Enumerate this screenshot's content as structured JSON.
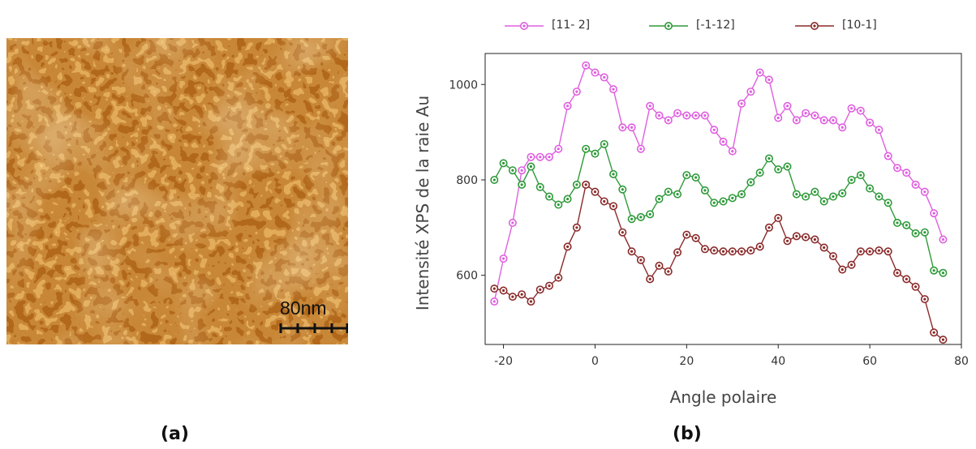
{
  "panel_a": {
    "scale_label": "80nm",
    "caption": "(a)",
    "colors": {
      "dark": "#8a4a10",
      "mid": "#c8791f",
      "light": "#f2c270",
      "highlight": "#fbe3a6"
    }
  },
  "panel_b": {
    "caption": "(b)"
  },
  "chart_data": {
    "type": "line",
    "title": "",
    "xlabel": "Angle polaire",
    "ylabel": "Intensité XPS de la raie Au",
    "xlim": [
      -24,
      80
    ],
    "ylim": [
      455,
      1065
    ],
    "xticks": [
      -20,
      0,
      20,
      40,
      60,
      80
    ],
    "yticks": [
      600,
      800,
      1000
    ],
    "grid": false,
    "legend_position": "top",
    "series": [
      {
        "name": "[11- 2]",
        "color": "#e05fe0",
        "x": [
          -22,
          -20,
          -18,
          -16,
          -14,
          -12,
          -10,
          -8,
          -6,
          -4,
          -2,
          0,
          2,
          4,
          6,
          8,
          10,
          12,
          14,
          16,
          18,
          20,
          22,
          24,
          26,
          28,
          30,
          32,
          34,
          36,
          38,
          40,
          42,
          44,
          46,
          48,
          50,
          52,
          54,
          56,
          58,
          60,
          62,
          64,
          66,
          68,
          70,
          72,
          74,
          76
        ],
        "y": [
          545,
          635,
          710,
          820,
          848,
          848,
          848,
          865,
          955,
          985,
          1040,
          1025,
          1015,
          990,
          910,
          910,
          865,
          955,
          935,
          925,
          940,
          935,
          935,
          935,
          905,
          880,
          860,
          960,
          985,
          1025,
          1010,
          930,
          955,
          925,
          940,
          935,
          925,
          925,
          910,
          950,
          945,
          920,
          905,
          850,
          825,
          815,
          790,
          775,
          730,
          675
        ]
      },
      {
        "name": "[-1-12]",
        "color": "#2f9a3a",
        "x": [
          -22,
          -20,
          -18,
          -16,
          -14,
          -12,
          -10,
          -8,
          -6,
          -4,
          -2,
          0,
          2,
          4,
          6,
          8,
          10,
          12,
          14,
          16,
          18,
          20,
          22,
          24,
          26,
          28,
          30,
          32,
          34,
          36,
          38,
          40,
          42,
          44,
          46,
          48,
          50,
          52,
          54,
          56,
          58,
          60,
          62,
          64,
          66,
          68,
          70,
          72,
          74,
          76
        ],
        "y": [
          800,
          835,
          820,
          790,
          828,
          785,
          765,
          748,
          760,
          790,
          865,
          855,
          875,
          812,
          780,
          718,
          722,
          728,
          760,
          775,
          770,
          810,
          805,
          778,
          752,
          755,
          762,
          770,
          795,
          815,
          845,
          822,
          828,
          770,
          765,
          775,
          755,
          765,
          772,
          800,
          810,
          782,
          765,
          752,
          710,
          705,
          688,
          690,
          610,
          605
        ]
      },
      {
        "name": "[10-1]",
        "color": "#8b2a2a",
        "x": [
          -22,
          -20,
          -18,
          -16,
          -14,
          -12,
          -10,
          -8,
          -6,
          -4,
          -2,
          0,
          2,
          4,
          6,
          8,
          10,
          12,
          14,
          16,
          18,
          20,
          22,
          24,
          26,
          28,
          30,
          32,
          34,
          36,
          38,
          40,
          42,
          44,
          46,
          48,
          50,
          52,
          54,
          56,
          58,
          60,
          62,
          64,
          66,
          68,
          70,
          72,
          74,
          76
        ],
        "y": [
          572,
          568,
          555,
          560,
          545,
          570,
          578,
          595,
          660,
          700,
          790,
          775,
          755,
          745,
          690,
          650,
          632,
          592,
          620,
          608,
          648,
          685,
          678,
          655,
          652,
          650,
          650,
          650,
          652,
          660,
          700,
          720,
          672,
          682,
          680,
          675,
          658,
          640,
          612,
          622,
          650,
          650,
          652,
          650,
          605,
          592,
          576,
          550,
          480,
          465
        ]
      }
    ]
  }
}
